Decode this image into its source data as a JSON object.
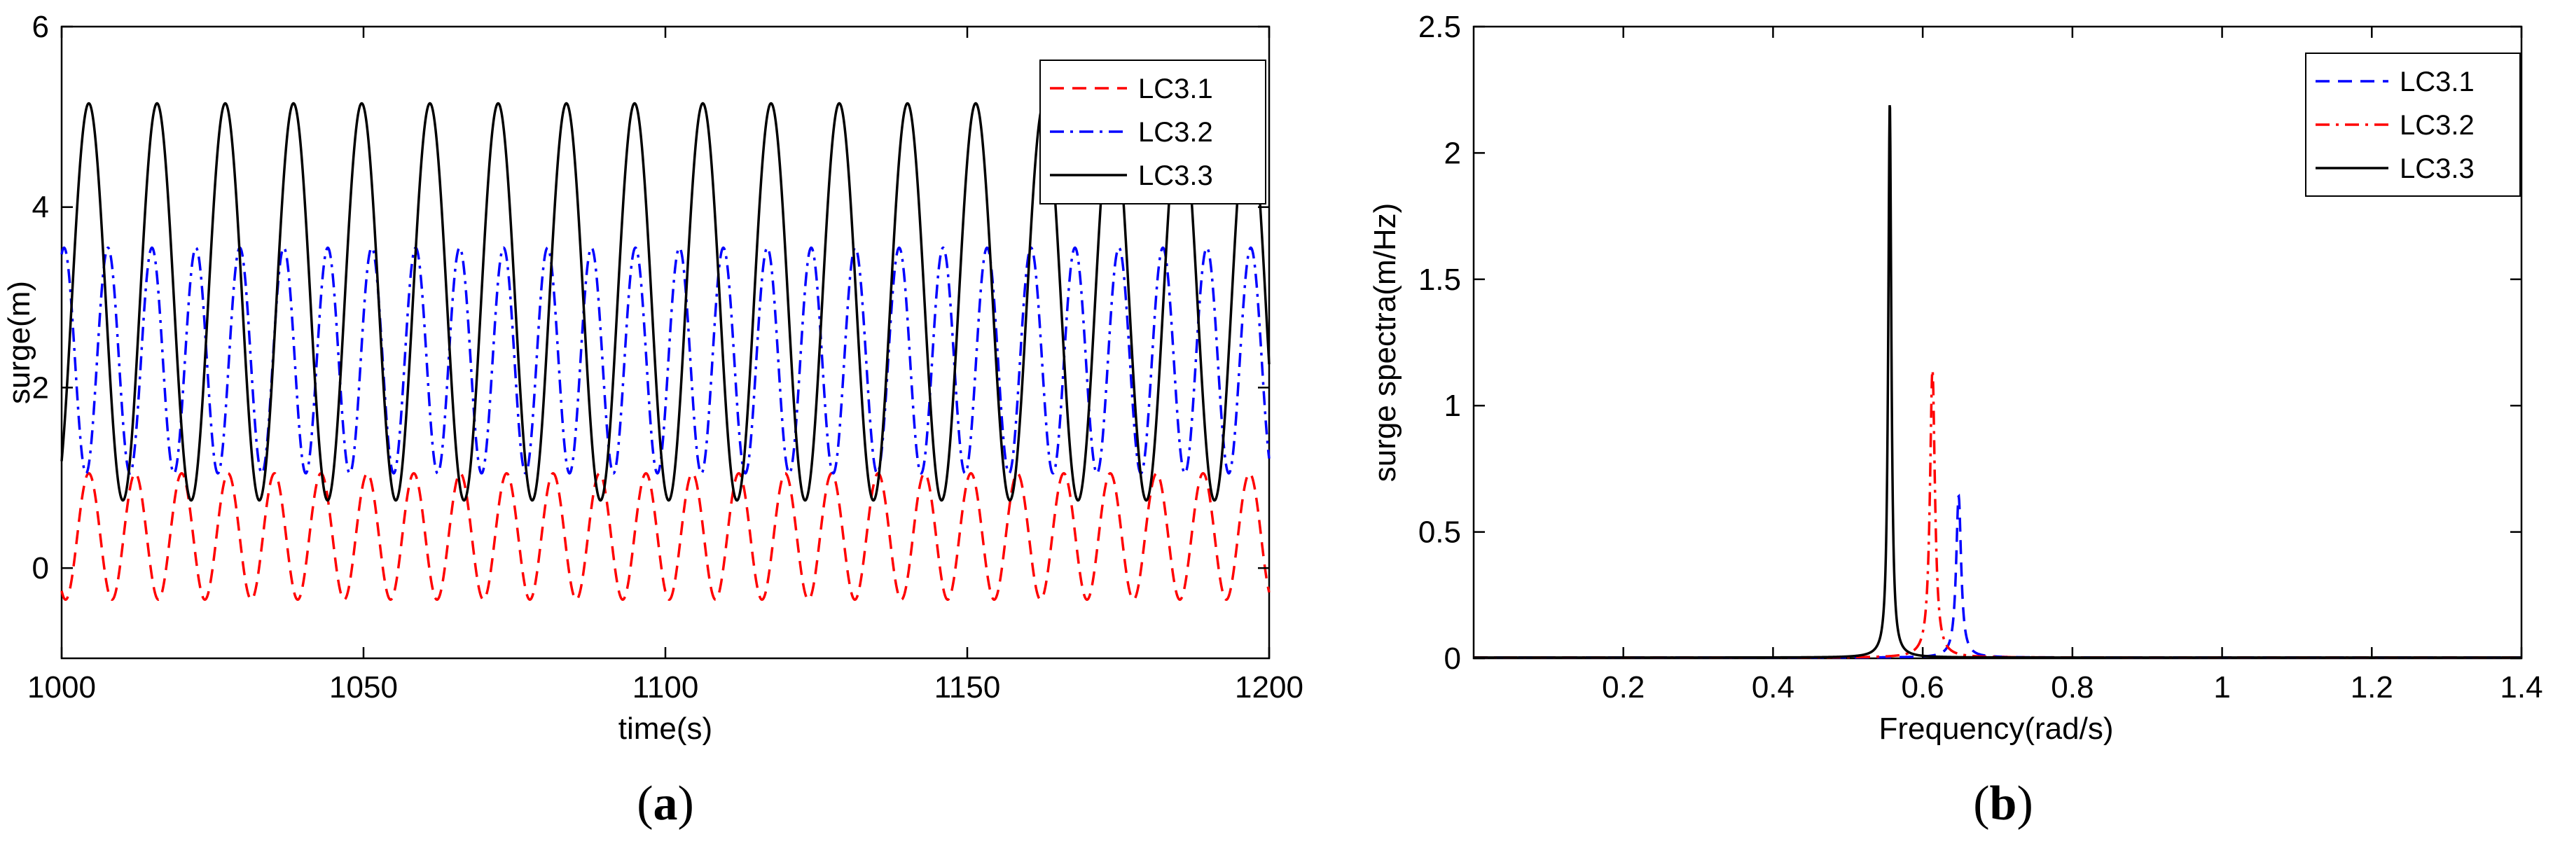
{
  "chart_data": [
    {
      "type": "line",
      "panel": "a",
      "caption_open": "(",
      "caption_letter": "a",
      "caption_close": ")",
      "title": "",
      "xlabel": "time(s)",
      "ylabel": "surge(m)",
      "xlim": [
        1000,
        1200
      ],
      "ylim": [
        -1,
        6
      ],
      "xticks": [
        1000,
        1050,
        1100,
        1150,
        1200
      ],
      "yticks": [
        0,
        2,
        4,
        6
      ],
      "legend_position": "top-right",
      "series": [
        {
          "name": "LC3.1",
          "color": "#ff0000",
          "style": "dashed",
          "mean": 0.35,
          "amplitude": 0.7,
          "period": 7.69,
          "phase_time": 1004.5
        },
        {
          "name": "LC3.2",
          "color": "#0000ff",
          "style": "dashdot",
          "mean": 2.3,
          "amplitude": 1.25,
          "period": 7.28,
          "phase_time": 1000.4
        },
        {
          "name": "LC3.3",
          "color": "#000000",
          "style": "solid",
          "mean": 2.95,
          "amplitude": 2.2,
          "period": 11.3,
          "phase_time": 1004.5
        }
      ]
    },
    {
      "type": "line",
      "panel": "b",
      "caption_open": "(",
      "caption_letter": "b",
      "caption_close": ")",
      "title": "",
      "xlabel": "Frequency(rad/s)",
      "ylabel": "surge spectra(m/Hz)",
      "xlim": [
        0,
        1.4
      ],
      "ylim": [
        0,
        2.5
      ],
      "xticks": [
        0.2,
        0.4,
        0.6,
        0.8,
        1,
        1.2,
        1.4
      ],
      "xtick_labels": [
        "0.2",
        "0.4",
        "0.6",
        "0.8",
        "1",
        "1.2",
        "1.4"
      ],
      "yticks": [
        0,
        0.5,
        1,
        1.5,
        2,
        2.5
      ],
      "ytick_labels": [
        "0",
        "0.5",
        "1",
        "1.5",
        "2",
        "2.5"
      ],
      "legend_position": "top-right",
      "series": [
        {
          "name": "LC3.1",
          "color": "#0000ff",
          "style": "dashed",
          "peak_x": 0.648,
          "peak_y": 0.64,
          "width": 0.004
        },
        {
          "name": "LC3.2",
          "color": "#ff0000",
          "style": "dashdot",
          "peak_x": 0.613,
          "peak_y": 1.14,
          "width": 0.004
        },
        {
          "name": "LC3.3",
          "color": "#000000",
          "style": "solid",
          "peak_x": 0.556,
          "peak_y": 2.2,
          "width": 0.0025
        }
      ]
    }
  ]
}
